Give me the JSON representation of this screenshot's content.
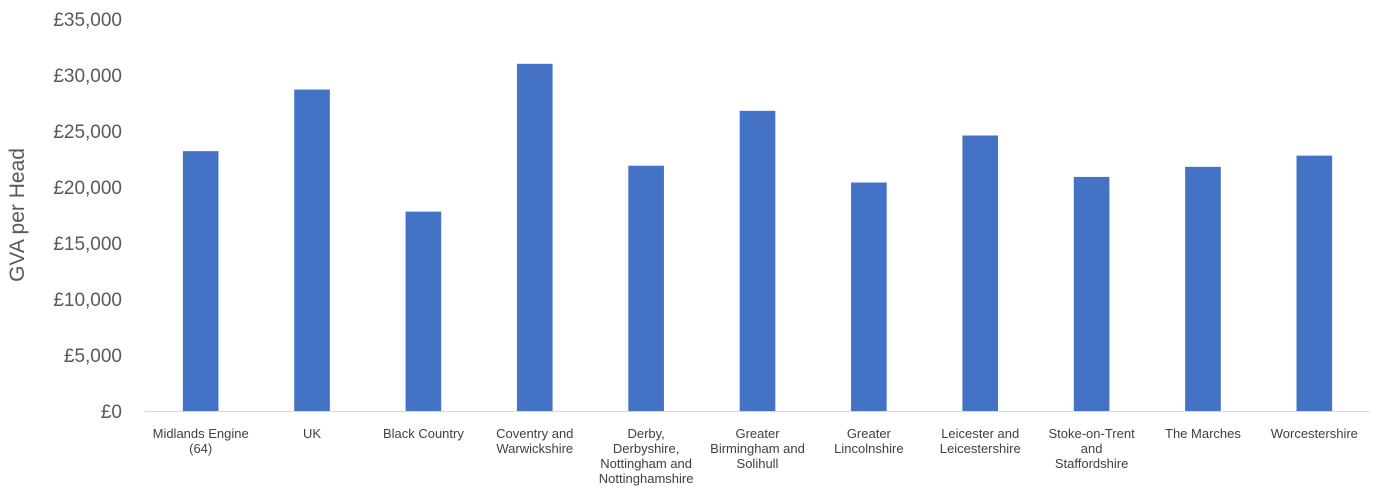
{
  "chart_data": {
    "type": "bar",
    "title": "",
    "xlabel": "",
    "ylabel": "GVA per Head",
    "ylim": [
      0,
      35000
    ],
    "grid": false,
    "legend": "none",
    "bar_color": "#4472C4",
    "yticks": [
      "£0",
      "£5,000",
      "£10,000",
      "£15,000",
      "£20,000",
      "£25,000",
      "£30,000",
      "£35,000"
    ],
    "categories": [
      [
        "Midlands Engine",
        "(64)"
      ],
      [
        "UK"
      ],
      [
        "Black Country"
      ],
      [
        "Coventry and",
        "Warwickshire"
      ],
      [
        "Derby,",
        "Derbyshire,",
        "Nottingham and",
        "Nottinghamshire"
      ],
      [
        "Greater",
        "Birmingham and",
        "Solihull"
      ],
      [
        "Greater",
        "Lincolnshire"
      ],
      [
        "Leicester and",
        "Leicestershire"
      ],
      [
        "Stoke-on-Trent",
        "and",
        "Staffordshire"
      ],
      [
        "The Marches"
      ],
      [
        "Worcestershire"
      ]
    ],
    "values": [
      23200,
      28700,
      17800,
      31000,
      21900,
      26800,
      20400,
      24600,
      20900,
      21800,
      22800
    ]
  }
}
